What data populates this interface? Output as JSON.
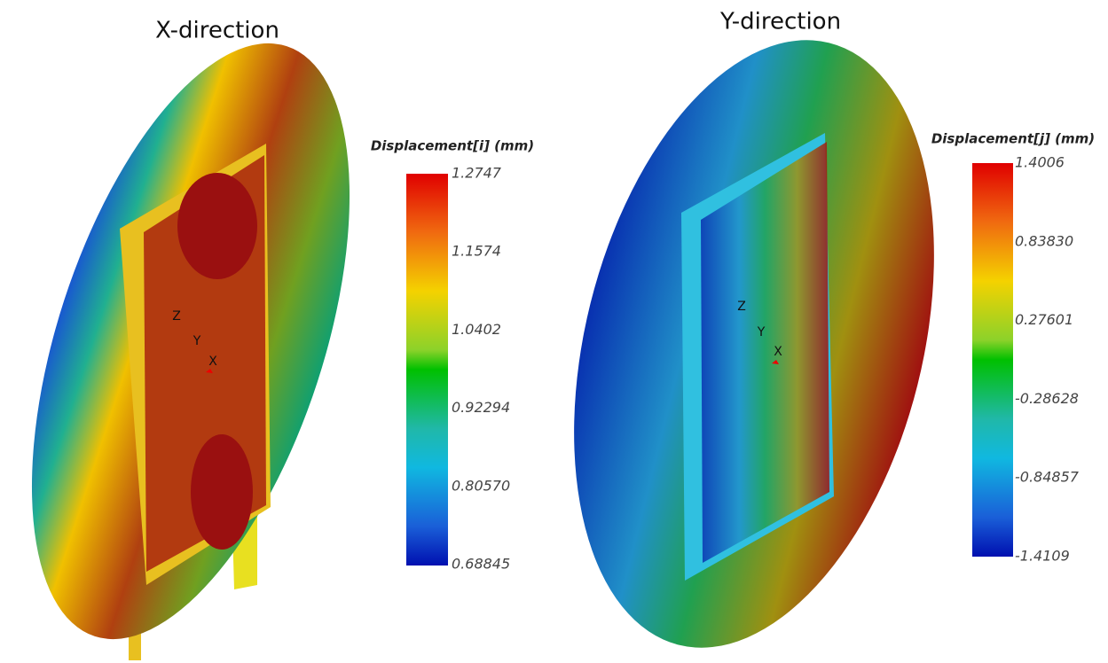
{
  "panels": [
    {
      "title": "X-direction",
      "legend_title": "Displacement[i] (mm)",
      "legend_labels": [
        "1.2747",
        "1.1574",
        "1.0402",
        "0.92294",
        "0.80570",
        "0.68845"
      ],
      "axes": [
        "Z",
        "Y",
        "X"
      ]
    },
    {
      "title": "Y-direction",
      "legend_title": "Displacement[j] (mm)",
      "legend_labels": [
        "1.4006",
        "0.83830",
        "0.27601",
        "-0.28628",
        "-0.84857",
        "-1.4109"
      ],
      "axes": [
        "Z",
        "Y",
        "X"
      ]
    }
  ]
}
